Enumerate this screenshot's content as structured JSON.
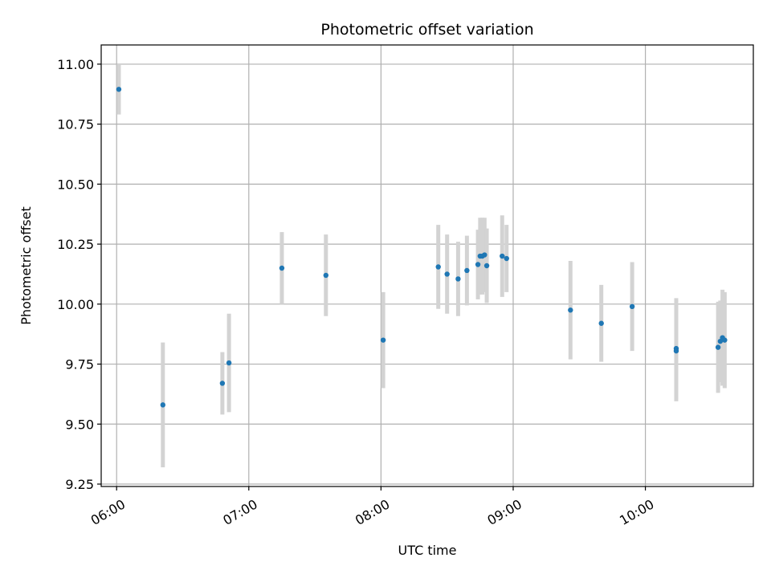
{
  "chart_data": {
    "type": "scatter",
    "title": "Photometric offset variation",
    "xlabel": "UTC time",
    "ylabel": "Photometric offset",
    "x_unit": "UTC time (HH:MM)",
    "xlim": [
      "05:53",
      "10:49"
    ],
    "ylim": [
      9.24,
      11.08
    ],
    "x_ticks": [
      "06:00",
      "07:00",
      "08:00",
      "09:00",
      "10:00"
    ],
    "y_ticks": [
      9.25,
      9.5,
      9.75,
      10.0,
      10.25,
      10.5,
      10.75,
      11.0
    ],
    "y_tick_labels": [
      "9.25",
      "9.50",
      "9.75",
      "10.00",
      "10.25",
      "10.50",
      "10.75",
      "11.00"
    ],
    "grid": true,
    "colors": {
      "point": "#1f77b4",
      "errorbar": "#d3d3d3",
      "grid": "#b0b0b0"
    },
    "points": [
      {
        "t": "06:01",
        "y": 10.895,
        "err": 0.105
      },
      {
        "t": "06:21",
        "y": 9.58,
        "err": 0.26
      },
      {
        "t": "06:48",
        "y": 9.67,
        "err": 0.13
      },
      {
        "t": "06:51",
        "y": 9.755,
        "err": 0.205
      },
      {
        "t": "07:15",
        "y": 10.15,
        "err": 0.15
      },
      {
        "t": "07:35",
        "y": 10.12,
        "err": 0.17
      },
      {
        "t": "08:01",
        "y": 9.85,
        "err": 0.2
      },
      {
        "t": "08:26",
        "y": 10.155,
        "err": 0.175
      },
      {
        "t": "08:30",
        "y": 10.125,
        "err": 0.165
      },
      {
        "t": "08:35",
        "y": 10.105,
        "err": 0.155
      },
      {
        "t": "08:39",
        "y": 10.14,
        "err": 0.145
      },
      {
        "t": "08:44",
        "y": 10.165,
        "err": 0.145
      },
      {
        "t": "08:45",
        "y": 10.2,
        "err": 0.16
      },
      {
        "t": "08:46",
        "y": 10.2,
        "err": 0.16
      },
      {
        "t": "08:47",
        "y": 10.205,
        "err": 0.155
      },
      {
        "t": "08:48",
        "y": 10.16,
        "err": 0.155
      },
      {
        "t": "08:55",
        "y": 10.2,
        "err": 0.17
      },
      {
        "t": "08:57",
        "y": 10.19,
        "err": 0.14
      },
      {
        "t": "09:26",
        "y": 9.975,
        "err": 0.205
      },
      {
        "t": "09:40",
        "y": 9.92,
        "err": 0.16
      },
      {
        "t": "09:54",
        "y": 9.99,
        "err": 0.185
      },
      {
        "t": "10:14",
        "y": 9.815,
        "err": 0.21
      },
      {
        "t": "10:14",
        "y": 9.805,
        "err": 0.21
      },
      {
        "t": "10:33",
        "y": 9.82,
        "err": 0.19
      },
      {
        "t": "10:34",
        "y": 9.845,
        "err": 0.17
      },
      {
        "t": "10:35",
        "y": 9.86,
        "err": 0.2
      },
      {
        "t": "10:36",
        "y": 9.85,
        "err": 0.2
      }
    ]
  }
}
